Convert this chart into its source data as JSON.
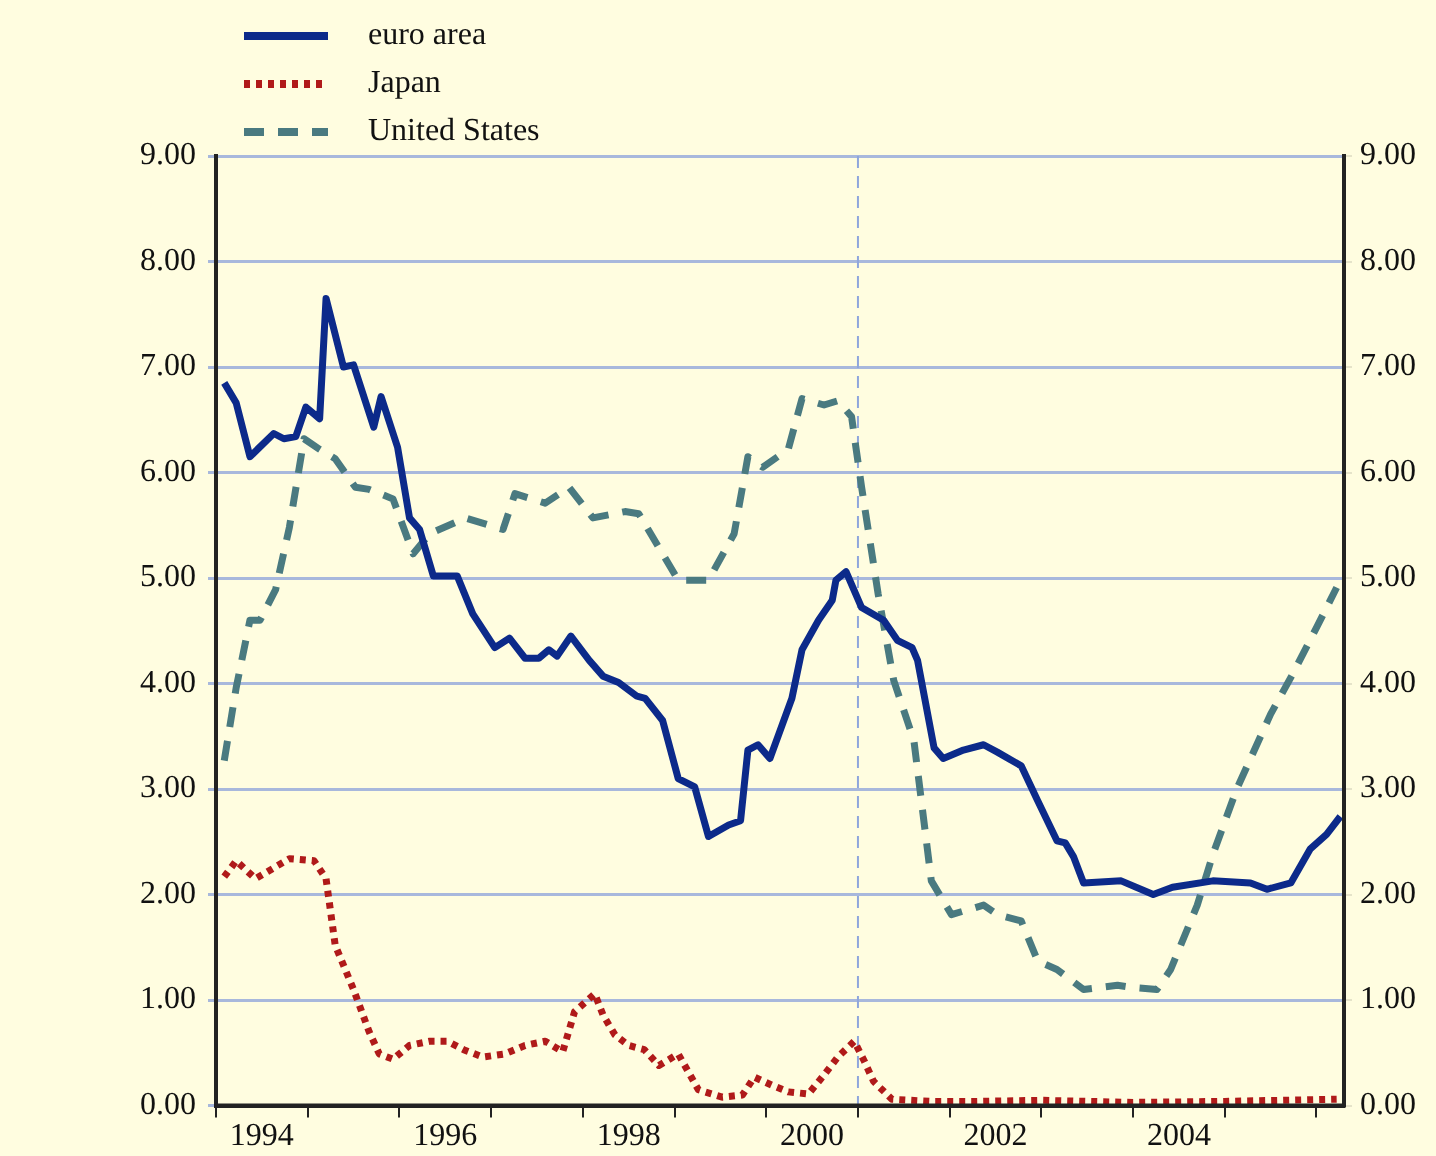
{
  "chart_data": {
    "type": "line",
    "legend": "top left",
    "grid": "y",
    "xlim": [
      1994,
      2006.3
    ],
    "xticks": [
      {
        "value": 1994,
        "label": null
      },
      {
        "value": 1994.5,
        "label": "1994"
      },
      {
        "value": 1995,
        "label": null
      },
      {
        "value": 1996,
        "label": null
      },
      {
        "value": 1996.5,
        "label": "1996"
      },
      {
        "value": 1997,
        "label": null
      },
      {
        "value": 1998,
        "label": null
      },
      {
        "value": 1998.5,
        "label": "1998"
      },
      {
        "value": 1999,
        "label": null
      },
      {
        "value": 2000,
        "label": null
      },
      {
        "value": 2000.5,
        "label": "2000"
      },
      {
        "value": 2001,
        "label": null
      },
      {
        "value": 2002,
        "label": null
      },
      {
        "value": 2002.5,
        "label": "2002"
      },
      {
        "value": 2003,
        "label": null
      },
      {
        "value": 2004,
        "label": null
      },
      {
        "value": 2004.5,
        "label": "2004"
      },
      {
        "value": 2005,
        "label": null
      },
      {
        "value": 2006,
        "label": null
      }
    ],
    "ylim": [
      0,
      9
    ],
    "yticks": [
      {
        "value": 0,
        "label": "0.00"
      },
      {
        "value": 1,
        "label": "1.00"
      },
      {
        "value": 2,
        "label": "2.00"
      },
      {
        "value": 3,
        "label": "3.00"
      },
      {
        "value": 4,
        "label": "4.00"
      },
      {
        "value": 5,
        "label": "5.00"
      },
      {
        "value": 6,
        "label": "6.00"
      },
      {
        "value": 7,
        "label": "7.00"
      },
      {
        "value": 8,
        "label": "8.00"
      },
      {
        "value": 9,
        "label": "9.00"
      }
    ],
    "y2lim": [
      0,
      9
    ],
    "y2ticks": [
      {
        "value": 0,
        "label": "0.00"
      },
      {
        "value": 1,
        "label": "1.00"
      },
      {
        "value": 2,
        "label": "2.00"
      },
      {
        "value": 3,
        "label": "3.00"
      },
      {
        "value": 4,
        "label": "4.00"
      },
      {
        "value": 5,
        "label": "5.00"
      },
      {
        "value": 6,
        "label": "6.00"
      },
      {
        "value": 7,
        "label": "7.00"
      },
      {
        "value": 8,
        "label": "8.00"
      },
      {
        "value": 9,
        "label": "9.00"
      }
    ],
    "ref_lines": [
      {
        "axis": "x",
        "value": 2001,
        "label": null,
        "color": "#8fa6dc",
        "line_style": "dashed"
      }
    ],
    "series": [
      {
        "name": "euro area",
        "color": "#0c2a8a",
        "line_style": "solid",
        "x": [
          1994.09,
          1994.22,
          1994.37,
          1994.63,
          1994.74,
          1994.87,
          1994.98,
          1995.13,
          1995.2,
          1995.39,
          1995.5,
          1995.72,
          1995.8,
          1995.98,
          1996.11,
          1996.22,
          1996.37,
          1996.63,
          1996.8,
          1997.04,
          1997.2,
          1997.37,
          1997.52,
          1997.63,
          1997.72,
          1997.87,
          1998.07,
          1998.22,
          1998.39,
          1998.59,
          1998.68,
          1998.87,
          1999.04,
          1999.22,
          1999.37,
          1999.59,
          1999.72,
          1999.8,
          1999.91,
          2000.04,
          2000.28,
          2000.39,
          2000.57,
          2000.72,
          2000.76,
          2000.87,
          2001.04,
          2001.28,
          2001.43,
          2001.59,
          2001.65,
          2001.83,
          2001.93,
          2002.15,
          2002.37,
          2002.52,
          2002.78,
          2002.96,
          2003.17,
          2003.26,
          2003.35,
          2003.46,
          2003.87,
          2004.22,
          2004.43,
          2004.87,
          2005.28,
          2005.46,
          2005.72,
          2005.93,
          2006.11,
          2006.26
        ],
        "values": [
          6.85,
          6.66,
          6.15,
          6.37,
          6.32,
          6.34,
          6.62,
          6.51,
          7.65,
          7.0,
          7.02,
          6.43,
          6.72,
          6.24,
          5.57,
          5.46,
          5.02,
          5.02,
          4.66,
          4.34,
          4.43,
          4.24,
          4.24,
          4.32,
          4.26,
          4.45,
          4.22,
          4.07,
          4.01,
          3.88,
          3.86,
          3.65,
          3.1,
          3.02,
          2.55,
          2.66,
          2.7,
          3.37,
          3.42,
          3.29,
          3.86,
          4.32,
          4.6,
          4.79,
          4.98,
          5.06,
          4.72,
          4.6,
          4.41,
          4.34,
          4.22,
          3.39,
          3.29,
          3.37,
          3.42,
          3.35,
          3.22,
          2.89,
          2.51,
          2.49,
          2.36,
          2.11,
          2.13,
          2.0,
          2.07,
          2.13,
          2.11,
          2.05,
          2.11,
          2.43,
          2.57,
          2.74
        ]
      },
      {
        "name": "Japan",
        "color": "#b01a1a",
        "line_style": "dotted",
        "x": [
          1994.09,
          1994.22,
          1994.43,
          1994.8,
          1995.07,
          1995.2,
          1995.3,
          1995.5,
          1995.67,
          1995.78,
          1995.93,
          1996.11,
          1996.33,
          1996.52,
          1996.7,
          1996.91,
          1997.15,
          1997.37,
          1997.59,
          1997.78,
          1997.91,
          1998.13,
          1998.22,
          1998.35,
          1998.5,
          1998.67,
          1998.83,
          1999.04,
          1999.26,
          1999.52,
          1999.74,
          1999.87,
          2000.07,
          2000.24,
          2000.46,
          2000.63,
          2000.78,
          2000.96,
          2001.07,
          2001.17,
          2001.37,
          2001.8,
          2002.3,
          2003.0,
          2004.0,
          2005.0,
          2006.22
        ],
        "values": [
          2.17,
          2.32,
          2.15,
          2.34,
          2.32,
          2.15,
          1.52,
          1.1,
          0.7,
          0.49,
          0.44,
          0.57,
          0.61,
          0.61,
          0.53,
          0.46,
          0.49,
          0.57,
          0.61,
          0.51,
          0.89,
          1.06,
          0.86,
          0.67,
          0.57,
          0.53,
          0.38,
          0.49,
          0.15,
          0.08,
          0.1,
          0.27,
          0.19,
          0.13,
          0.11,
          0.29,
          0.46,
          0.61,
          0.42,
          0.23,
          0.06,
          0.04,
          0.04,
          0.05,
          0.03,
          0.04,
          0.06
        ]
      },
      {
        "name": "United States",
        "color": "#4a7a80",
        "line_style": "dashed",
        "x": [
          1994.09,
          1994.22,
          1994.37,
          1994.48,
          1994.65,
          1994.8,
          1994.96,
          1995.13,
          1995.3,
          1995.52,
          1995.67,
          1995.93,
          1996.15,
          1996.33,
          1996.72,
          1997.13,
          1997.26,
          1997.59,
          1997.85,
          1998.11,
          1998.46,
          1998.61,
          1999.04,
          1999.37,
          1999.65,
          1999.8,
          1999.96,
          2000.24,
          2000.39,
          2000.63,
          2000.78,
          2000.93,
          2001.04,
          2001.22,
          2001.39,
          2001.61,
          2001.8,
          2002.02,
          2002.37,
          2002.52,
          2002.78,
          2002.96,
          2003.17,
          2003.46,
          2003.83,
          2003.98,
          2004.26,
          2004.41,
          2004.7,
          2004.87,
          2005.13,
          2005.5,
          2005.74,
          2006.0,
          2006.22
        ],
        "values": [
          3.27,
          3.96,
          4.6,
          4.6,
          4.89,
          5.48,
          6.32,
          6.22,
          6.13,
          5.86,
          5.84,
          5.75,
          5.23,
          5.42,
          5.57,
          5.46,
          5.8,
          5.71,
          5.86,
          5.57,
          5.63,
          5.61,
          4.98,
          4.98,
          5.42,
          6.15,
          6.05,
          6.22,
          6.7,
          6.64,
          6.68,
          6.53,
          5.86,
          4.85,
          4.03,
          3.46,
          2.13,
          1.81,
          1.9,
          1.81,
          1.75,
          1.37,
          1.29,
          1.1,
          1.14,
          1.12,
          1.1,
          1.29,
          1.9,
          2.38,
          3.0,
          3.71,
          4.09,
          4.53,
          4.91
        ]
      }
    ]
  }
}
